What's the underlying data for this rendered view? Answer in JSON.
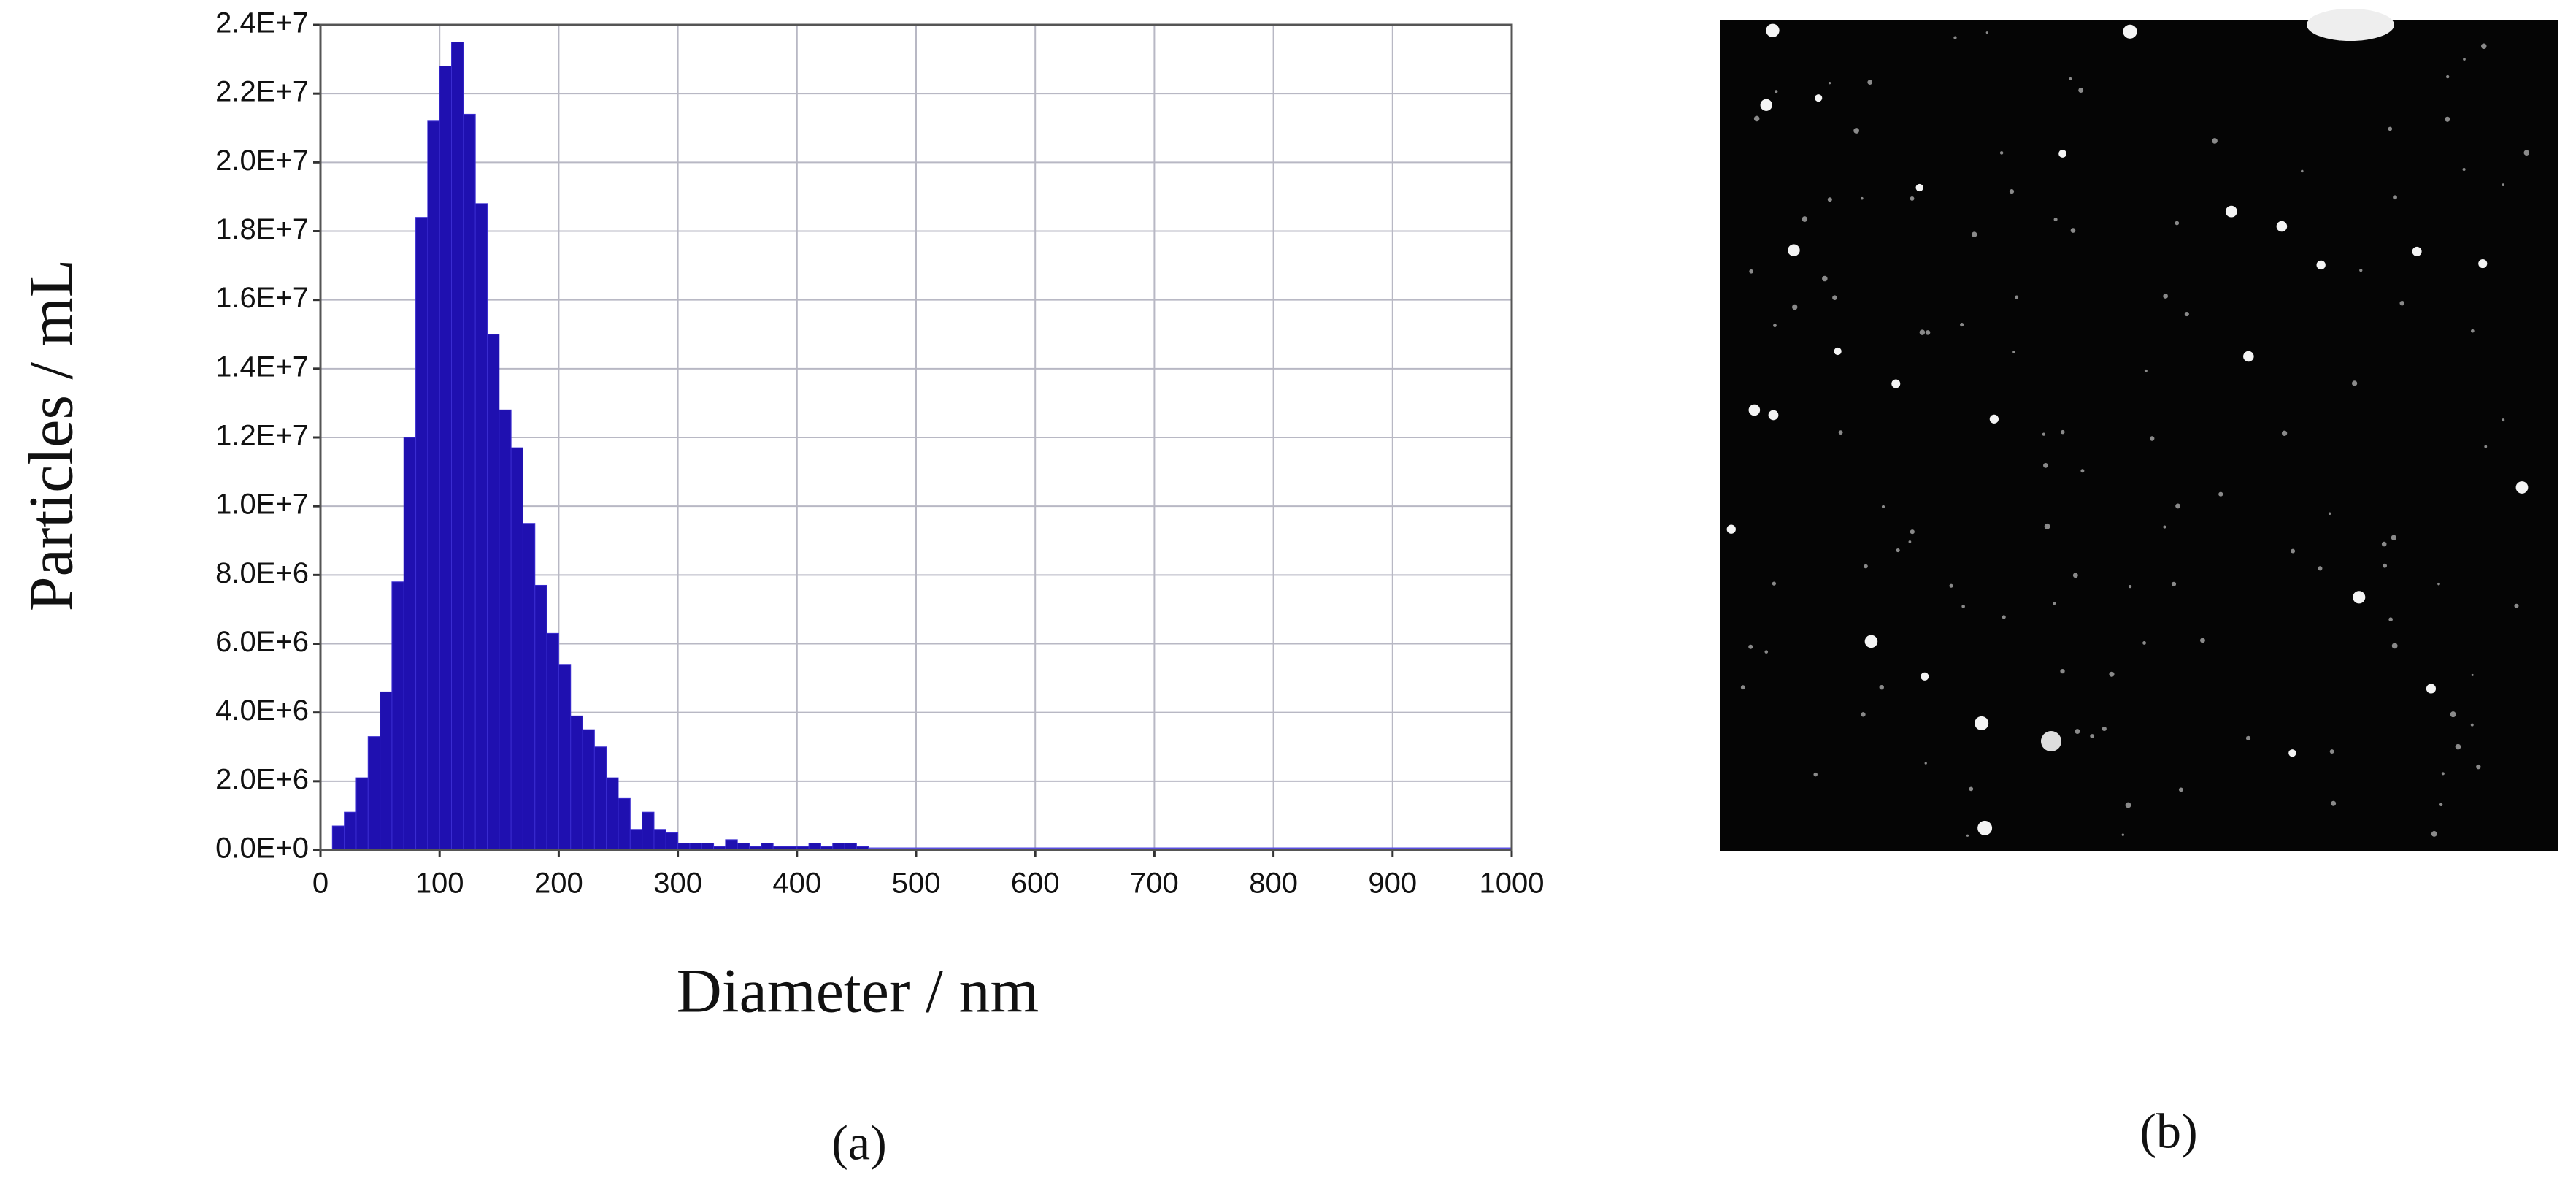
{
  "chart_data": {
    "type": "histogram",
    "ylabel": "Particles / mL",
    "xlabel": "Diameter / nm",
    "panel_label": "(a)",
    "color": "#1f10b0",
    "bins": [
      10,
      20,
      30,
      40,
      50,
      60,
      70,
      80,
      90,
      100,
      110,
      120,
      130,
      140,
      150,
      160,
      170,
      180,
      190,
      200,
      210,
      220,
      230,
      240,
      250,
      260,
      270,
      280,
      290,
      300,
      310,
      320,
      330,
      340,
      350,
      360,
      370,
      380,
      390,
      400,
      410,
      420,
      430,
      440,
      450,
      460
    ],
    "values": [
      700000,
      1100000,
      2100000,
      3300000,
      4600000,
      7800000,
      12000000,
      18400000,
      21200000,
      22800000,
      23500000,
      21400000,
      18800000,
      15000000,
      12800000,
      11700000,
      9500000,
      7700000,
      6300000,
      5400000,
      3900000,
      3500000,
      3000000,
      2100000,
      1500000,
      600000,
      1100000,
      600000,
      500000,
      200000,
      200000,
      200000,
      100000,
      300000,
      200000,
      100000,
      200000,
      100000,
      100000,
      100000,
      200000,
      100000,
      200000,
      200000,
      100000
    ],
    "xlim": [
      0,
      1000
    ],
    "xticks": [
      0,
      100,
      200,
      300,
      400,
      500,
      600,
      700,
      800,
      900,
      1000
    ],
    "ylim": [
      0,
      24000000
    ],
    "yticks": [
      {
        "value": 0,
        "label": "0.0E+0"
      },
      {
        "value": 2000000,
        "label": "2.0E+6"
      },
      {
        "value": 4000000,
        "label": "4.0E+6"
      },
      {
        "value": 6000000,
        "label": "6.0E+6"
      },
      {
        "value": 8000000,
        "label": "8.0E+6"
      },
      {
        "value": 10000000,
        "label": "1.0E+7"
      },
      {
        "value": 12000000,
        "label": "1.2E+7"
      },
      {
        "value": 14000000,
        "label": "1.4E+7"
      },
      {
        "value": 16000000,
        "label": "1.6E+7"
      },
      {
        "value": 18000000,
        "label": "1.8E+7"
      },
      {
        "value": 20000000,
        "label": "2.0E+7"
      },
      {
        "value": 22000000,
        "label": "2.2E+7"
      },
      {
        "value": 24000000,
        "label": "2.4E+7"
      }
    ],
    "grid": true
  },
  "image_panel": {
    "label": "(b)"
  }
}
